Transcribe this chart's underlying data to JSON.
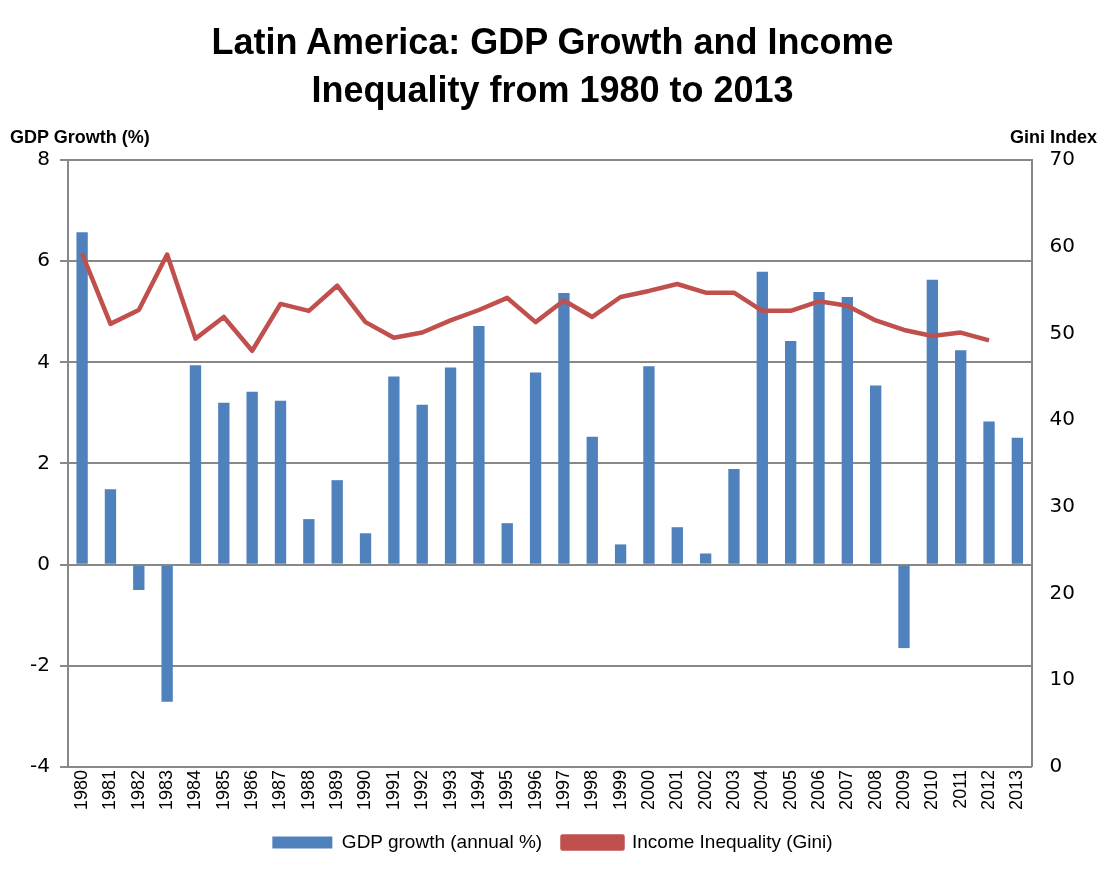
{
  "chart_data": {
    "type": "bar",
    "title": "Latin America: GDP Growth and Income Inequality from 1980 to 2013",
    "ylabel": "GDP Growth (%)",
    "y2label": "Gini Index",
    "categories": [
      "1980",
      "1981",
      "1982",
      "1983",
      "1984",
      "1985",
      "1986",
      "1987",
      "1988",
      "1989",
      "1990",
      "1991",
      "1992",
      "1993",
      "1994",
      "1995",
      "1996",
      "1997",
      "1998",
      "1999",
      "2000",
      "2001",
      "2002",
      "2003",
      "2004",
      "2005",
      "2006",
      "2007",
      "2008",
      "2009",
      "2010",
      "2011",
      "2012",
      "2013"
    ],
    "series": [
      {
        "name": "GDP growth (annual %)",
        "color": "#4f81bd",
        "values": [
          6.57,
          1.49,
          -0.5,
          -2.71,
          3.94,
          3.2,
          3.42,
          3.24,
          0.9,
          1.67,
          0.62,
          3.72,
          3.16,
          3.9,
          4.72,
          0.82,
          3.8,
          5.37,
          2.53,
          0.4,
          3.92,
          0.74,
          0.22,
          1.89,
          5.79,
          4.42,
          5.39,
          5.29,
          3.54,
          -1.65,
          5.63,
          4.24,
          2.83,
          2.51
        ]
      },
      {
        "name": "Income Inequality (Gini)",
        "type": "line",
        "axis": "y2",
        "color": "#c0504d",
        "values": [
          59.2,
          51.1,
          52.7,
          59.1,
          49.4,
          51.9,
          48.0,
          53.4,
          52.6,
          55.5,
          51.3,
          49.5,
          50.1,
          51.5,
          52.7,
          54.1,
          51.3,
          53.8,
          51.9,
          54.2,
          54.9,
          55.7,
          54.7,
          54.7,
          52.6,
          52.6,
          53.7,
          53.2,
          51.5,
          50.4,
          49.7,
          50.1,
          49.2,
          null
        ]
      }
    ],
    "ylim": [
      -4,
      8
    ],
    "yticks": [
      -4,
      -2,
      0,
      2,
      4,
      6,
      8
    ],
    "y2lim": [
      0,
      70
    ],
    "y2ticks": [
      0,
      10,
      20,
      30,
      40,
      50,
      60,
      70
    ],
    "grid": "y",
    "legend": "bottom",
    "marker": "none",
    "line_style": "solid"
  }
}
